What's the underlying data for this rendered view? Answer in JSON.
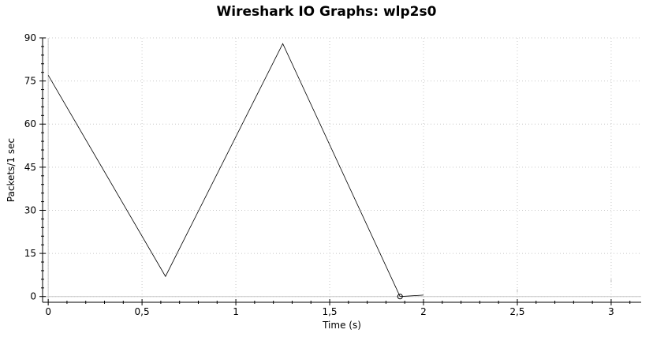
{
  "chart_data": {
    "type": "line",
    "title": "Wireshark IO Graphs: wlp2s0",
    "xlabel": "Time (s)",
    "ylabel": "Packets/1 sec",
    "xlim": [
      -0.03,
      3.16
    ],
    "ylim": [
      -2,
      90
    ],
    "x_ticks": [
      0,
      0.5,
      1,
      1.5,
      2,
      2.5,
      3
    ],
    "x_tick_labels": [
      "0",
      "0,5",
      "1",
      "1,5",
      "2",
      "2,5",
      "3"
    ],
    "y_ticks": [
      0,
      15,
      30,
      45,
      60,
      75,
      90
    ],
    "y_tick_labels": [
      "0",
      "15",
      "30",
      "45",
      "60",
      "75",
      "90"
    ],
    "grid": true,
    "series": [
      {
        "x": [
          0,
          0.625,
          1.25,
          1.875,
          2.0
        ],
        "y": [
          77,
          7,
          88,
          0,
          0.5
        ],
        "color": "#000000"
      }
    ],
    "marker": {
      "x": 1.875,
      "y": 0
    },
    "faint_points": [
      {
        "x": 2.5,
        "y": 2
      },
      {
        "x": 3.0,
        "y": 5.5
      }
    ]
  }
}
